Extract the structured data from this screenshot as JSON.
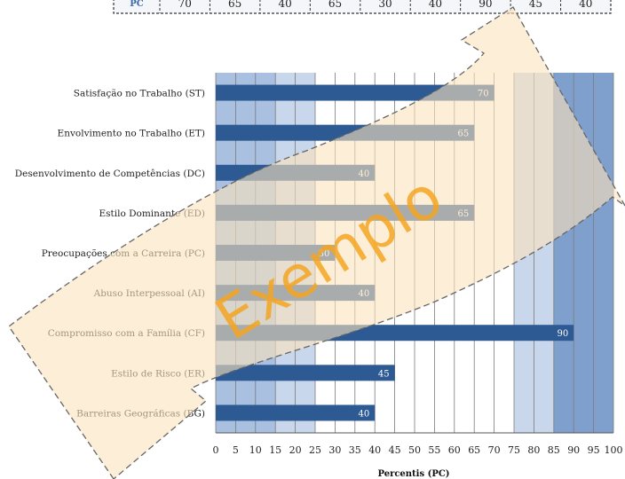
{
  "top_table": {
    "row_label": "PC",
    "values": [
      "70",
      "65",
      "40",
      "65",
      "30",
      "40",
      "90",
      "45",
      "40"
    ]
  },
  "watermark": "Exemplo",
  "colors": {
    "bar_fill": "#2d5a93",
    "band_dark": "#7f9fcd",
    "band_mid": "#a9c0e0",
    "band_light": "#c9d7ec",
    "watermark_fill": "#fbe3bc",
    "watermark_stroke": "#666666",
    "watermark_text": "#f5a623"
  },
  "chart_data": {
    "type": "bar",
    "orientation": "horizontal",
    "categories": [
      "Satisfação no Trabalho (ST)",
      "Envolvimento no Trabalho (ET)",
      "Desenvolvimento de Competências (DC)",
      "Estilo Dominante (ED)",
      "Preocupações com a Carreira (PC)",
      "Abuso Interpessoal (AI)",
      "Compromisso com a Família (CF)",
      "Estilo de Risco (ER)",
      "Barreiras Geográficas (BG)"
    ],
    "values": [
      70,
      65,
      40,
      65,
      30,
      40,
      90,
      45,
      40
    ],
    "data_labels": [
      "70",
      "65",
      "40",
      "65",
      "30",
      "40",
      "90",
      "45",
      "40"
    ],
    "xlabel": "Percentis (PC)",
    "ylabel": "",
    "xlim": [
      0,
      100
    ],
    "xticks": [
      "0",
      "5",
      "10",
      "15",
      "20",
      "25",
      "30",
      "35",
      "40",
      "45",
      "50",
      "55",
      "60",
      "65",
      "70",
      "75",
      "80",
      "85",
      "90",
      "95",
      "100"
    ],
    "grid": true,
    "background_bands": [
      {
        "from": 0,
        "to": 15,
        "shade": "band_mid"
      },
      {
        "from": 15,
        "to": 25,
        "shade": "band_light"
      },
      {
        "from": 75,
        "to": 85,
        "shade": "band_light"
      },
      {
        "from": 85,
        "to": 100,
        "shade": "band_dark"
      }
    ]
  }
}
